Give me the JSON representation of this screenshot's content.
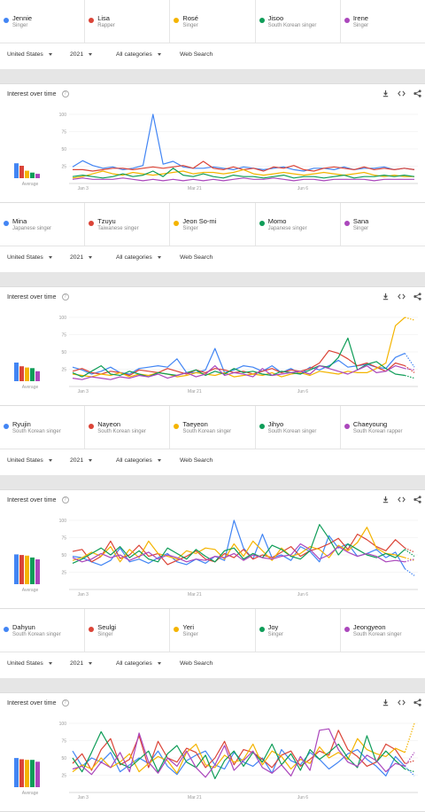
{
  "colors": [
    "#4285f4",
    "#db4437",
    "#f4b400",
    "#0f9d58",
    "#ab47bc"
  ],
  "filter_labels": {
    "region": "United States",
    "year": "2021",
    "category": "All categories",
    "search_type": "Web Search"
  },
  "interest_title": "Interest over time",
  "average_label": "Average",
  "comparisons": [
    {
      "terms": [
        {
          "name": "Jennie",
          "desc": "Singer"
        },
        {
          "name": "Lisa",
          "desc": "Rapper"
        },
        {
          "name": "Rosé",
          "desc": "Singer"
        },
        {
          "name": "Jisoo",
          "desc": "South Korean singer"
        },
        {
          "name": "Irene",
          "desc": "Singer"
        }
      ]
    },
    {
      "terms": [
        {
          "name": "Mina",
          "desc": "Japanese singer"
        },
        {
          "name": "Tzuyu",
          "desc": "Taiwanese singer"
        },
        {
          "name": "Jeon So-mi",
          "desc": "Singer"
        },
        {
          "name": "Momo",
          "desc": "Japanese singer"
        },
        {
          "name": "Sana",
          "desc": "Singer"
        }
      ]
    },
    {
      "terms": [
        {
          "name": "Ryujin",
          "desc": "South Korean singer"
        },
        {
          "name": "Nayeon",
          "desc": "South Korean singer"
        },
        {
          "name": "Taeyeon",
          "desc": "South Korean singer"
        },
        {
          "name": "Jihyo",
          "desc": "South Korean singer"
        },
        {
          "name": "Chaeyoung",
          "desc": "South Korean rapper"
        }
      ]
    },
    {
      "terms": [
        {
          "name": "Dahyun",
          "desc": "South Korean singer"
        },
        {
          "name": "Seulgi",
          "desc": "Singer"
        },
        {
          "name": "Yeri",
          "desc": "Singer"
        },
        {
          "name": "Joy",
          "desc": "Singer"
        },
        {
          "name": "Jeongyeon",
          "desc": "South Korean singer"
        }
      ]
    }
  ],
  "chart_data": [
    {
      "type": "line",
      "x_ticks": [
        "Jan 3",
        "Mar 21",
        "Jun 6"
      ],
      "y_ticks": [
        25,
        50,
        75,
        100
      ],
      "ylim": [
        0,
        100
      ],
      "partial_last_point": false,
      "averages": [
        24,
        20,
        12,
        9,
        7
      ],
      "series": [
        {
          "name": "Jennie",
          "values": [
            24,
            33,
            26,
            22,
            24,
            20,
            22,
            26,
            100,
            28,
            32,
            24,
            22,
            22,
            24,
            22,
            20,
            24,
            22,
            20,
            22,
            24,
            20,
            18,
            22,
            22,
            20,
            24,
            20,
            22,
            22,
            24,
            20,
            22,
            20
          ]
        },
        {
          "name": "Lisa",
          "values": [
            20,
            20,
            18,
            20,
            22,
            22,
            20,
            22,
            24,
            22,
            24,
            26,
            22,
            32,
            22,
            20,
            24,
            20,
            22,
            18,
            24,
            22,
            26,
            20,
            18,
            22,
            24,
            22,
            20,
            24,
            20,
            22,
            20,
            22,
            20
          ]
        },
        {
          "name": "Rosé",
          "values": [
            8,
            10,
            14,
            18,
            14,
            12,
            16,
            14,
            12,
            14,
            16,
            18,
            14,
            16,
            16,
            14,
            16,
            20,
            14,
            12,
            14,
            16,
            14,
            12,
            14,
            16,
            14,
            12,
            14,
            16,
            12,
            10,
            12,
            10,
            10
          ]
        },
        {
          "name": "Jisoo",
          "values": [
            10,
            12,
            10,
            8,
            10,
            14,
            10,
            12,
            18,
            10,
            22,
            12,
            10,
            14,
            10,
            8,
            12,
            10,
            10,
            8,
            10,
            12,
            8,
            10,
            10,
            8,
            10,
            12,
            8,
            10,
            10,
            12,
            10,
            12,
            10
          ]
        },
        {
          "name": "Irene",
          "values": [
            6,
            8,
            6,
            6,
            6,
            8,
            6,
            4,
            6,
            4,
            6,
            4,
            6,
            4,
            6,
            4,
            6,
            8,
            6,
            6,
            8,
            6,
            4,
            6,
            6,
            4,
            6,
            6,
            6,
            6,
            4,
            6,
            6,
            6,
            6
          ]
        }
      ]
    },
    {
      "type": "line",
      "x_ticks": [
        "Jan 3",
        "Mar 21",
        "Jun 6"
      ],
      "y_ticks": [
        25,
        50,
        75,
        100
      ],
      "ylim": [
        0,
        100
      ],
      "partial_last_point": true,
      "averages": [
        30,
        24,
        22,
        21,
        16
      ],
      "series": [
        {
          "name": "Mina",
          "values": [
            28,
            24,
            18,
            22,
            28,
            20,
            18,
            26,
            28,
            30,
            28,
            40,
            20,
            20,
            24,
            55,
            20,
            24,
            30,
            28,
            22,
            30,
            20,
            26,
            18,
            28,
            24,
            30,
            38,
            28,
            30,
            32,
            28,
            26,
            42,
            48,
            28
          ]
        },
        {
          "name": "Tzuyu",
          "values": [
            22,
            26,
            20,
            18,
            22,
            20,
            16,
            24,
            22,
            20,
            26,
            22,
            18,
            24,
            20,
            26,
            24,
            20,
            22,
            18,
            22,
            26,
            20,
            24,
            22,
            26,
            34,
            52,
            48,
            40,
            30,
            34,
            28,
            22,
            34,
            30,
            20
          ]
        },
        {
          "name": "Jeon So-mi",
          "values": [
            18,
            16,
            14,
            18,
            16,
            20,
            14,
            18,
            16,
            20,
            18,
            14,
            16,
            20,
            18,
            16,
            20,
            14,
            16,
            18,
            16,
            20,
            14,
            18,
            20,
            16,
            22,
            20,
            18,
            22,
            20,
            20,
            26,
            34,
            88,
            100,
            96
          ]
        },
        {
          "name": "Momo",
          "values": [
            20,
            14,
            22,
            30,
            18,
            16,
            22,
            18,
            14,
            20,
            18,
            16,
            20,
            24,
            16,
            22,
            18,
            26,
            20,
            22,
            18,
            16,
            22,
            20,
            18,
            24,
            30,
            28,
            42,
            70,
            24,
            32,
            36,
            26,
            18,
            16,
            12
          ]
        },
        {
          "name": "Sana",
          "values": [
            12,
            10,
            14,
            12,
            10,
            14,
            12,
            16,
            14,
            18,
            12,
            16,
            20,
            14,
            18,
            30,
            16,
            20,
            18,
            14,
            26,
            16,
            18,
            20,
            22,
            18,
            30,
            26,
            22,
            18,
            24,
            30,
            20,
            22,
            30,
            26,
            24
          ]
        }
      ]
    },
    {
      "type": "line",
      "x_ticks": [
        "Jan 3",
        "Mar 21",
        "Jun 6"
      ],
      "y_ticks": [
        25,
        50,
        75,
        100
      ],
      "ylim": [
        0,
        100
      ],
      "partial_last_point": true,
      "averages": [
        48,
        47,
        46,
        43,
        40
      ],
      "series": [
        {
          "name": "Ryujin",
          "values": [
            48,
            46,
            40,
            35,
            42,
            60,
            40,
            44,
            38,
            46,
            52,
            40,
            36,
            44,
            38,
            48,
            42,
            100,
            60,
            44,
            80,
            46,
            50,
            42,
            62,
            55,
            40,
            78,
            60,
            66,
            48,
            52,
            58,
            46,
            54,
            30,
            20
          ]
        },
        {
          "name": "Nayeon",
          "values": [
            55,
            58,
            40,
            48,
            70,
            45,
            50,
            64,
            48,
            52,
            36,
            42,
            48,
            56,
            44,
            40,
            52,
            46,
            58,
            44,
            50,
            46,
            54,
            62,
            48,
            56,
            60,
            66,
            74,
            58,
            80,
            72,
            62,
            56,
            72,
            60,
            54
          ]
        },
        {
          "name": "Taeyeon",
          "values": [
            42,
            46,
            54,
            48,
            62,
            40,
            58,
            46,
            70,
            52,
            48,
            44,
            56,
            52,
            60,
            58,
            44,
            66,
            48,
            70,
            56,
            42,
            60,
            48,
            52,
            62,
            58,
            46,
            64,
            56,
            68,
            90,
            60,
            52,
            50,
            46,
            42
          ]
        },
        {
          "name": "Jihyo",
          "values": [
            38,
            44,
            52,
            60,
            50,
            62,
            46,
            56,
            44,
            40,
            60,
            52,
            44,
            58,
            48,
            40,
            56,
            60,
            44,
            52,
            46,
            64,
            58,
            48,
            44,
            56,
            94,
            74,
            50,
            66,
            58,
            50,
            46,
            52,
            46,
            58,
            48
          ]
        },
        {
          "name": "Chaeyoung",
          "values": [
            46,
            40,
            44,
            52,
            46,
            50,
            42,
            48,
            54,
            44,
            50,
            46,
            40,
            44,
            42,
            48,
            46,
            52,
            42,
            50,
            46,
            44,
            48,
            50,
            66,
            58,
            44,
            50,
            62,
            54,
            48,
            52,
            48,
            40,
            42,
            40,
            44
          ]
        }
      ]
    },
    {
      "type": "line",
      "x_ticks": [
        "Jan 3",
        "Mar 21",
        "Jun 6"
      ],
      "y_ticks": [
        25,
        50,
        75,
        100
      ],
      "ylim": [
        0,
        100
      ],
      "partial_last_point": true,
      "averages": [
        47,
        45,
        44,
        44,
        41
      ],
      "series": [
        {
          "name": "Dahyun",
          "values": [
            60,
            38,
            50,
            44,
            58,
            30,
            40,
            50,
            42,
            60,
            38,
            26,
            46,
            54,
            60,
            40,
            34,
            58,
            44,
            38,
            50,
            28,
            62,
            46,
            40,
            58,
            48,
            34,
            44,
            56,
            62,
            48,
            38,
            24,
            52,
            38,
            24
          ]
        },
        {
          "name": "Seulgi",
          "values": [
            42,
            56,
            32,
            62,
            78,
            40,
            48,
            82,
            36,
            74,
            50,
            44,
            64,
            58,
            36,
            50,
            74,
            40,
            62,
            58,
            48,
            36,
            54,
            60,
            38,
            48,
            60,
            54,
            90,
            62,
            52,
            38,
            44,
            70,
            62,
            42,
            46
          ]
        },
        {
          "name": "Yeri",
          "values": [
            30,
            40,
            34,
            50,
            36,
            44,
            56,
            30,
            42,
            52,
            46,
            28,
            58,
            70,
            40,
            36,
            54,
            44,
            48,
            70,
            40,
            60,
            52,
            34,
            48,
            42,
            66,
            50,
            58,
            48,
            78,
            62,
            56,
            52,
            64,
            58,
            100
          ]
        },
        {
          "name": "Joy",
          "values": [
            50,
            30,
            58,
            88,
            64,
            42,
            36,
            48,
            60,
            30,
            56,
            68,
            44,
            36,
            54,
            20,
            46,
            60,
            38,
            58,
            44,
            70,
            40,
            56,
            32,
            62,
            48,
            58,
            70,
            50,
            36,
            82,
            44,
            60,
            46,
            34,
            30
          ]
        },
        {
          "name": "Jeongyeon",
          "values": [
            34,
            38,
            26,
            44,
            36,
            58,
            30,
            86,
            44,
            28,
            50,
            38,
            60,
            36,
            22,
            40,
            68,
            32,
            46,
            60,
            36,
            28,
            40,
            24,
            52,
            32,
            90,
            92,
            62,
            44,
            38,
            54,
            46,
            30,
            42,
            38,
            58
          ]
        }
      ]
    }
  ]
}
